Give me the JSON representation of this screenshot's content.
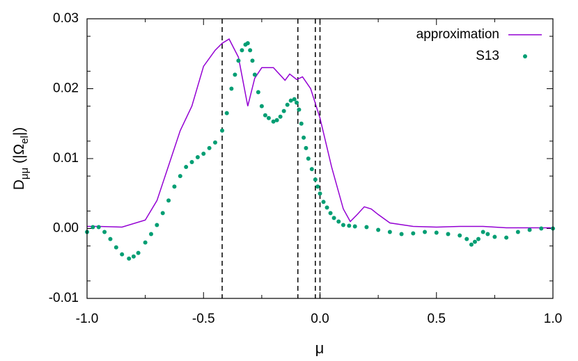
{
  "chart_data": {
    "type": "scatter",
    "xlabel": "μ",
    "ylabel_parts": [
      "D",
      "μμ",
      " (|Ω",
      "el",
      "|)"
    ],
    "xlim": [
      -1.0,
      1.0
    ],
    "ylim": [
      -0.01,
      0.03
    ],
    "xticks": [
      {
        "value": -1.0,
        "label": "-1.0"
      },
      -0.5,
      {
        "value": 0,
        "label": "0.0"
      },
      0.5,
      {
        "value": 1.0,
        "label": "1.0"
      }
    ],
    "yticks": [
      -0.01,
      {
        "value": 0,
        "label": "0.00"
      },
      0.01,
      0.02,
      0.03
    ],
    "vlines": [
      -0.42,
      -0.095,
      -0.02,
      0.0
    ],
    "legend": "top-right",
    "series": [
      {
        "name": "approximation",
        "color": "#9400d3",
        "style": "line",
        "x": [
          -1.0,
          -0.95,
          -0.85,
          -0.75,
          -0.7,
          -0.65,
          -0.6,
          -0.55,
          -0.5,
          -0.45,
          -0.42,
          -0.39,
          -0.35,
          -0.31,
          -0.28,
          -0.25,
          -0.2,
          -0.15,
          -0.13,
          -0.1,
          -0.075,
          -0.04,
          0.0,
          0.05,
          0.1,
          0.13,
          0.16,
          0.19,
          0.22,
          0.25,
          0.3,
          0.4,
          0.5,
          0.6,
          0.7,
          0.8,
          0.9,
          1.0
        ],
        "values": [
          0.0003,
          0.0003,
          0.0002,
          0.0012,
          0.004,
          0.009,
          0.014,
          0.0175,
          0.0232,
          0.0255,
          0.0265,
          0.0271,
          0.0245,
          0.0175,
          0.0215,
          0.023,
          0.023,
          0.0212,
          0.0221,
          0.0213,
          0.0217,
          0.02,
          0.0158,
          0.0088,
          0.0028,
          0.001,
          0.002,
          0.0031,
          0.0028,
          0.002,
          0.0008,
          0.0003,
          0.0002,
          0.0003,
          0.0003,
          0.0001,
          0.0001,
          0.0001
        ]
      },
      {
        "name": "S13",
        "color": "#009e73",
        "style": "points",
        "x": [
          -1.0,
          -0.975,
          -0.95,
          -0.925,
          -0.9,
          -0.875,
          -0.85,
          -0.82,
          -0.8,
          -0.78,
          -0.75,
          -0.725,
          -0.7,
          -0.675,
          -0.65,
          -0.625,
          -0.6,
          -0.575,
          -0.55,
          -0.525,
          -0.5,
          -0.475,
          -0.45,
          -0.42,
          -0.4,
          -0.38,
          -0.365,
          -0.35,
          -0.335,
          -0.32,
          -0.31,
          -0.3,
          -0.29,
          -0.28,
          -0.265,
          -0.25,
          -0.235,
          -0.22,
          -0.2,
          -0.185,
          -0.17,
          -0.155,
          -0.14,
          -0.125,
          -0.11,
          -0.1,
          -0.09,
          -0.08,
          -0.07,
          -0.06,
          -0.05,
          -0.035,
          -0.02,
          -0.01,
          0.0,
          0.015,
          0.03,
          0.045,
          0.06,
          0.08,
          0.1,
          0.125,
          0.15,
          0.2,
          0.25,
          0.3,
          0.35,
          0.4,
          0.45,
          0.5,
          0.55,
          0.6,
          0.63,
          0.65,
          0.665,
          0.68,
          0.7,
          0.72,
          0.75,
          0.8,
          0.85,
          0.9,
          0.95,
          1.0
        ],
        "values": [
          -0.0005,
          0.0002,
          0.0002,
          -0.0005,
          -0.0015,
          -0.0027,
          -0.0037,
          -0.0043,
          -0.004,
          -0.0035,
          -0.002,
          -0.0008,
          0.0005,
          0.0022,
          0.004,
          0.006,
          0.0075,
          0.0088,
          0.0095,
          0.0102,
          0.0107,
          0.0115,
          0.0123,
          0.014,
          0.0165,
          0.02,
          0.022,
          0.024,
          0.0255,
          0.0263,
          0.0265,
          0.0255,
          0.024,
          0.022,
          0.0195,
          0.0175,
          0.0162,
          0.0158,
          0.0153,
          0.0155,
          0.016,
          0.0168,
          0.0177,
          0.0183,
          0.0185,
          0.018,
          0.017,
          0.015,
          0.013,
          0.0115,
          0.01,
          0.0085,
          0.007,
          0.006,
          0.005,
          0.0038,
          0.003,
          0.0022,
          0.0015,
          0.001,
          0.0005,
          0.0004,
          0.0003,
          0.0002,
          -0.0002,
          -0.0005,
          -0.0008,
          -0.0007,
          -0.0005,
          -0.0006,
          -0.0008,
          -0.001,
          -0.0015,
          -0.0023,
          -0.0019,
          -0.0015,
          -0.0005,
          -0.0008,
          -0.0012,
          -0.0013,
          -0.0005,
          -0.0002,
          0.0,
          0.0
        ]
      }
    ]
  }
}
